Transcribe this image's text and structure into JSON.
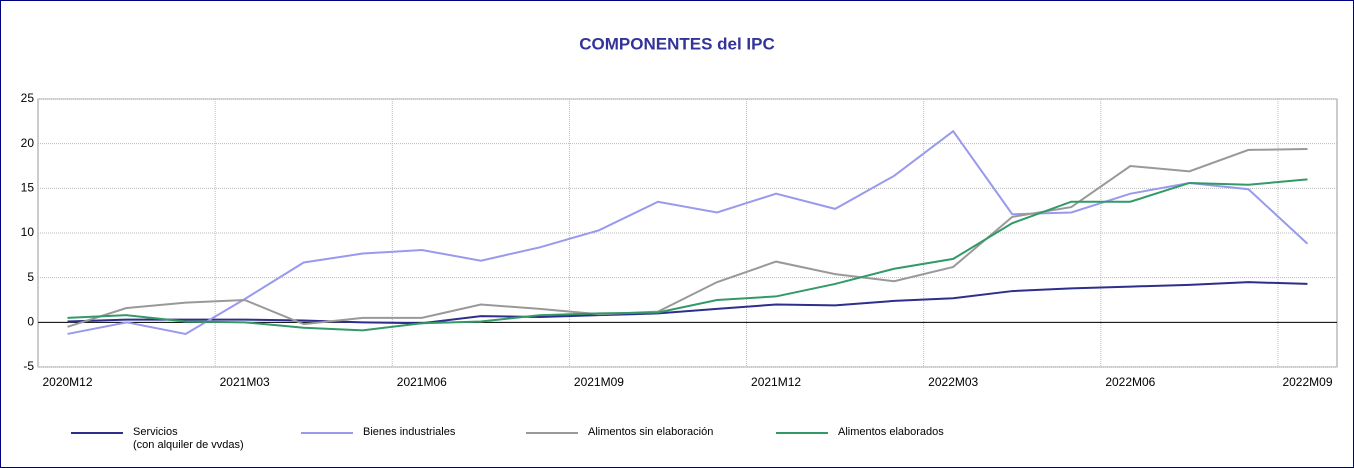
{
  "chart_data": {
    "type": "line",
    "title": "COMPONENTES del IPC",
    "categories": [
      "2020M12",
      null,
      null,
      "2021M03",
      null,
      null,
      "2021M06",
      null,
      null,
      "2021M09",
      null,
      null,
      "2021M12",
      null,
      null,
      "2022M03",
      null,
      null,
      "2022M06",
      null,
      null,
      "2022M09"
    ],
    "series": [
      {
        "name": "Servicios\n(con alquiler de vvdas)",
        "color": "#2e2e8c",
        "values": [
          0.1,
          0.3,
          0.3,
          0.3,
          0.2,
          0.0,
          -0.1,
          0.7,
          0.6,
          0.8,
          1.0,
          1.5,
          2.0,
          1.9,
          2.4,
          2.7,
          3.5,
          3.8,
          4.0,
          4.2,
          4.5,
          4.3
        ]
      },
      {
        "name": "Bienes industriales",
        "color": "#9999ee",
        "values": [
          -1.3,
          0.0,
          -1.3,
          2.6,
          6.7,
          7.7,
          8.1,
          6.9,
          8.4,
          10.3,
          13.5,
          12.3,
          14.4,
          12.7,
          16.4,
          21.4,
          12.1,
          12.3,
          14.4,
          15.6,
          14.9,
          8.8
        ]
      },
      {
        "name": "Alimentos sin elaboración",
        "color": "#999999",
        "values": [
          -0.5,
          1.6,
          2.2,
          2.5,
          -0.2,
          0.5,
          0.5,
          2.0,
          1.5,
          0.9,
          1.2,
          4.5,
          6.8,
          5.4,
          4.6,
          6.2,
          11.8,
          12.9,
          17.5,
          16.9,
          19.3,
          19.4
        ]
      },
      {
        "name": "Alimentos elaborados",
        "color": "#339966",
        "values": [
          0.5,
          0.8,
          0.1,
          0.0,
          -0.6,
          -0.9,
          -0.1,
          0.1,
          0.8,
          1.0,
          1.1,
          2.5,
          2.9,
          4.3,
          6.0,
          7.1,
          11.1,
          13.5,
          13.5,
          15.6,
          15.4,
          16.0
        ]
      }
    ],
    "ylim": [
      -5,
      25
    ],
    "yticks": [
      -5,
      0,
      5,
      10,
      15,
      20,
      25
    ],
    "grid": true
  }
}
